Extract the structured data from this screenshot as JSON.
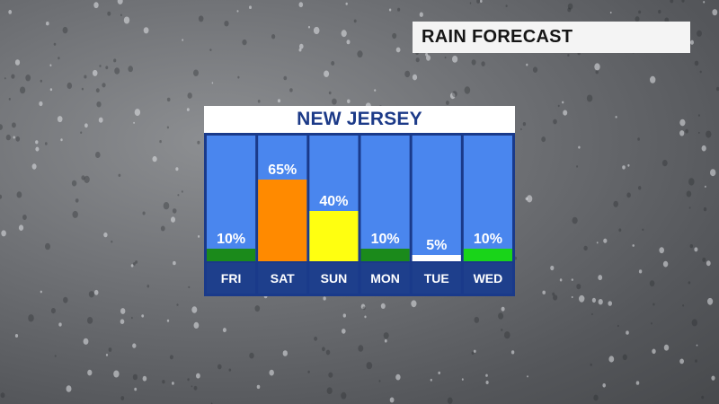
{
  "header": {
    "title": "RAIN FORECAST"
  },
  "chart_data": {
    "type": "bar",
    "title": "NEW JERSEY",
    "categories": [
      "FRI",
      "SAT",
      "SUN",
      "MON",
      "TUE",
      "WED"
    ],
    "values": [
      10,
      65,
      40,
      10,
      5,
      10
    ],
    "value_labels": [
      "10%",
      "65%",
      "40%",
      "10%",
      "5%",
      "10%"
    ],
    "bar_colors": [
      "#1b8a1b",
      "#ff8a00",
      "#ffff10",
      "#1b8a1b",
      "#ffffff",
      "#19d419"
    ],
    "ylim": [
      0,
      100
    ],
    "colors": {
      "column_bg": "#4a86ee",
      "label_bg": "#1e3f8c",
      "frame": "#1a3a8a"
    }
  }
}
